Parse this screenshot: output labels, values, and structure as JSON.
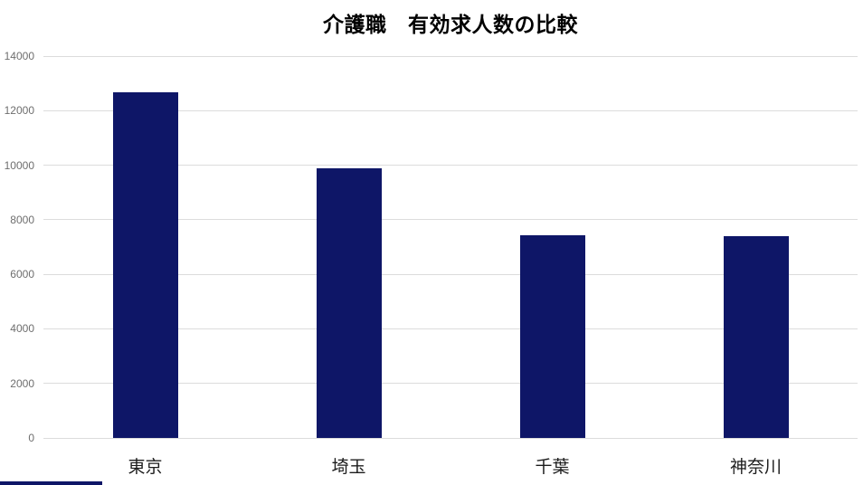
{
  "page": {
    "background": "#ffffff"
  },
  "chart_data": {
    "type": "bar",
    "title": "介護職　有効求人数の比較",
    "categories": [
      "東京",
      "埼玉",
      "千葉",
      "神奈川"
    ],
    "values": [
      12680,
      9880,
      7430,
      7400
    ],
    "xlabel": "",
    "ylabel": "",
    "ylim": [
      0,
      14000
    ],
    "yticks": [
      0,
      2000,
      4000,
      6000,
      8000,
      10000,
      12000,
      14000
    ],
    "ytick_labels": [
      "0",
      "2000",
      "4000",
      "6000",
      "8000",
      "10000",
      "12000",
      "14000"
    ],
    "grid": "horizontal",
    "legend": "none",
    "bar_color": "#0e1667",
    "gridline_color": "#dcdcdc",
    "tick_label_color": "#6e6e6e",
    "category_label_color": "#1c1c1c",
    "title_color": "#000000"
  },
  "decor": {
    "bottom_strip_color": "#0e1667"
  }
}
